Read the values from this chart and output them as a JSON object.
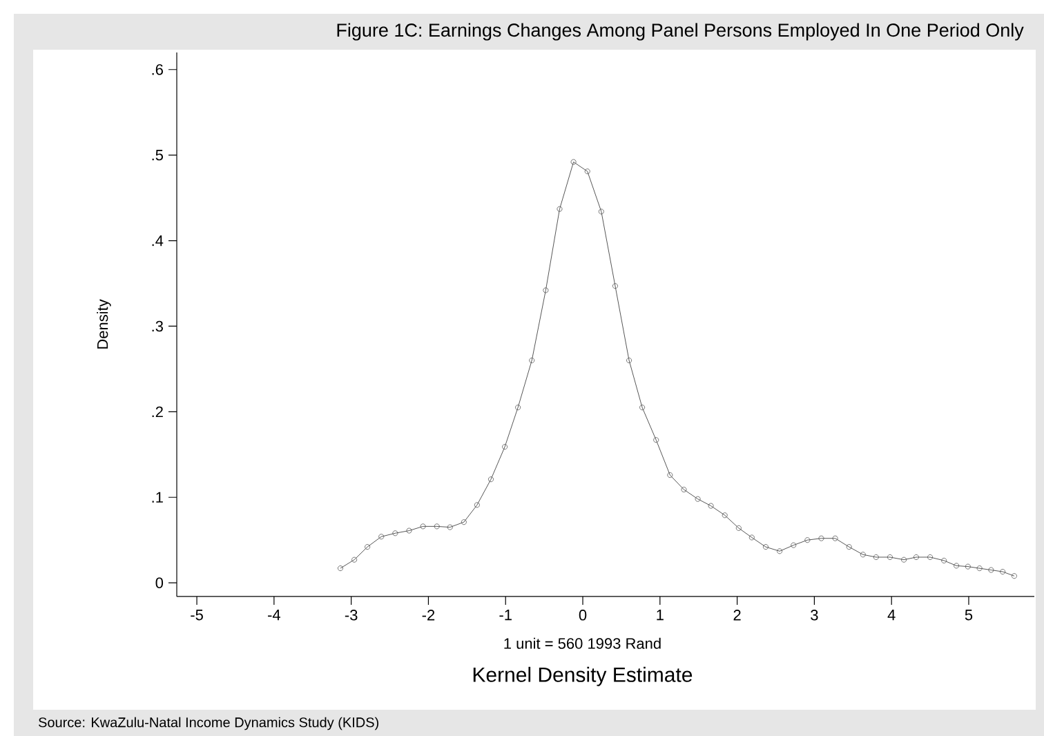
{
  "chart_data": {
    "type": "line",
    "title": "Figure 1C: Earnings Changes Among Panel Persons Employed In One Period Only",
    "xlabel": "Kernel Density Estimate",
    "ylabel": "Density",
    "annotations": [
      "1 unit = 560 1993 Rand",
      "Source: KwaZulu-Natal Income Dynamics Study (KIDS)"
    ],
    "x": [
      -3.14,
      -2.96,
      -2.79,
      -2.61,
      -2.43,
      -2.25,
      -2.07,
      -1.89,
      -1.72,
      -1.54,
      -1.37,
      -1.19,
      -1.01,
      -0.84,
      -0.66,
      -0.48,
      -0.3,
      -0.12,
      0.06,
      0.24,
      0.42,
      0.6,
      0.77,
      0.95,
      1.13,
      1.31,
      1.49,
      1.66,
      1.84,
      2.02,
      2.19,
      2.37,
      2.55,
      2.73,
      2.91,
      3.09,
      3.27,
      3.45,
      3.63,
      3.8,
      3.98,
      4.16,
      4.32,
      4.5,
      4.68,
      4.84,
      4.99,
      5.14,
      5.29,
      5.44,
      5.59
    ],
    "series": [
      {
        "color": "#555555",
        "values": [
          0.017,
          0.027,
          0.042,
          0.054,
          0.058,
          0.061,
          0.066,
          0.066,
          0.065,
          0.071,
          0.091,
          0.121,
          0.159,
          0.205,
          0.26,
          0.342,
          0.437,
          0.492,
          0.481,
          0.434,
          0.347,
          0.26,
          0.205,
          0.167,
          0.126,
          0.109,
          0.098,
          0.09,
          0.079,
          0.064,
          0.053,
          0.042,
          0.037,
          0.044,
          0.05,
          0.052,
          0.052,
          0.042,
          0.033,
          0.03,
          0.03,
          0.027,
          0.03,
          0.03,
          0.026,
          0.02,
          0.019,
          0.017,
          0.015,
          0.013,
          0.008
        ]
      }
    ],
    "xlim": [
      -5.26,
      5.85
    ],
    "ylim": [
      -0.016,
      0.62
    ],
    "xticks": [
      -5,
      -4,
      -3,
      -2,
      -1,
      0,
      1,
      2,
      3,
      4,
      5
    ],
    "yticks": [
      {
        "value": 0,
        "label": "0"
      },
      {
        "value": 0.1,
        "label": ".1"
      },
      {
        "value": 0.2,
        "label": ".2"
      },
      {
        "value": 0.3,
        "label": ".3"
      },
      {
        "value": 0.4,
        "label": ".4"
      },
      {
        "value": 0.5,
        "label": ".5"
      },
      {
        "value": 0.6,
        "label": ".6"
      }
    ],
    "marker": "circle",
    "line_style": "solid"
  }
}
